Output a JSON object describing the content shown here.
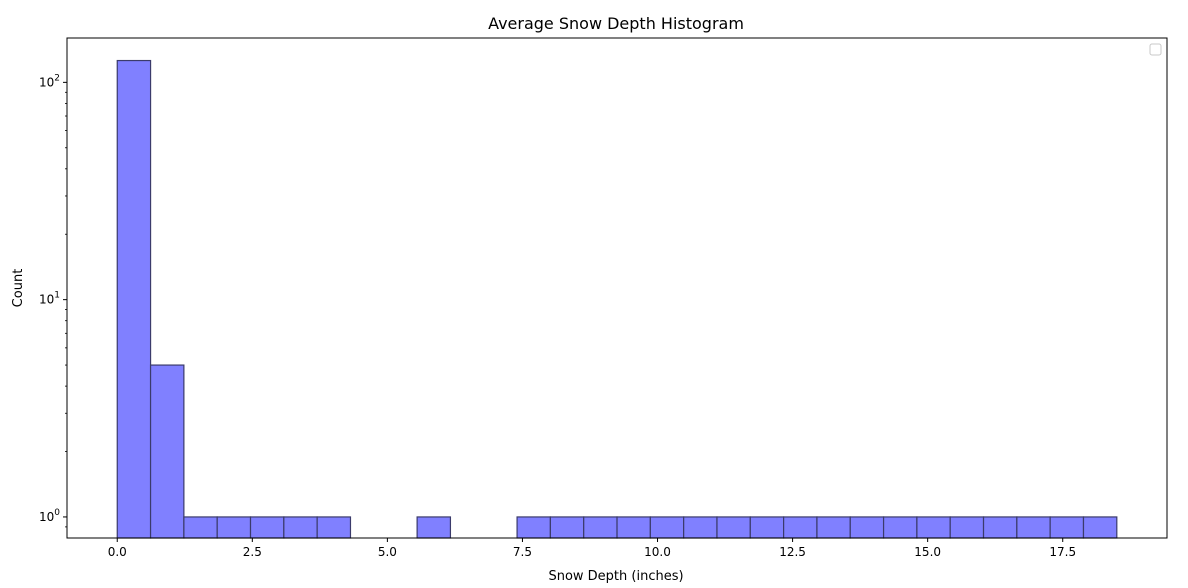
{
  "chart_data": {
    "type": "bar",
    "subtype": "histogram",
    "title": "Average Snow Depth Histogram",
    "xlabel": "Snow Depth (inches)",
    "ylabel": "Count",
    "yscale": "log",
    "xlim": [
      -0.93,
      19.43
    ],
    "ylim": [
      0.8,
      160
    ],
    "bin_start": 0.0,
    "bin_width": 0.6167,
    "num_bins": 30,
    "counts": [
      126,
      5,
      1,
      1,
      1,
      1,
      1,
      0,
      0,
      1,
      0,
      0,
      1,
      1,
      1,
      1,
      1,
      1,
      1,
      1,
      1,
      1,
      1,
      1,
      1,
      1,
      1,
      1,
      1,
      1
    ],
    "x_ticks": [
      0.0,
      2.5,
      5.0,
      7.5,
      10.0,
      12.5,
      15.0,
      17.5
    ],
    "x_tick_labels": [
      "0.0",
      "2.5",
      "5.0",
      "7.5",
      "10.0",
      "12.5",
      "15.0",
      "17.5"
    ],
    "y_ticks": [
      1,
      10,
      100
    ],
    "y_tick_base": "10",
    "y_tick_exponents": [
      "0",
      "1",
      "2"
    ],
    "bar_color": "#8080ff",
    "bar_edge_color": "#3b3b6b",
    "grid": false,
    "legend": {
      "placement": "top-right",
      "entries": []
    }
  }
}
